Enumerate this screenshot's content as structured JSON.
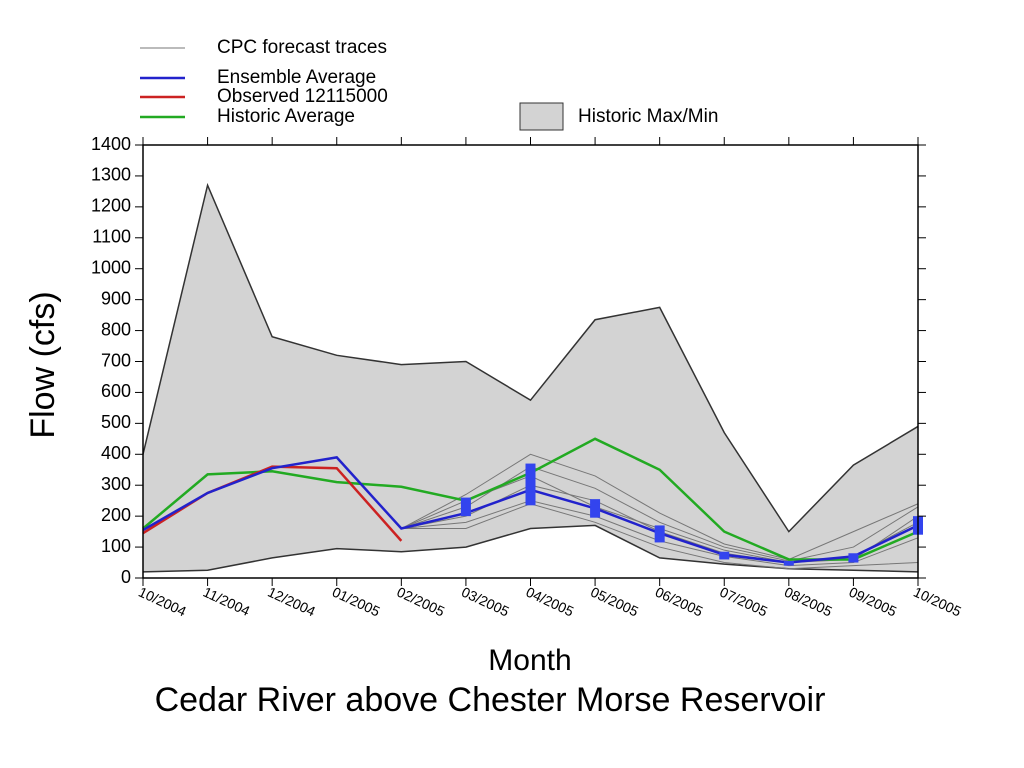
{
  "chart_data": {
    "type": "line",
    "caption": "Cedar River above Chester Morse Reservoir",
    "x_label": "Month",
    "y_label": "Flow (cfs)",
    "categories": [
      "10/2004",
      "11/2004",
      "12/2004",
      "01/2005",
      "02/2005",
      "03/2005",
      "04/2005",
      "05/2005",
      "06/2005",
      "07/2005",
      "08/2005",
      "09/2005",
      "10/2005"
    ],
    "ylim": [
      0,
      1400
    ],
    "yticks": [
      0,
      100,
      200,
      300,
      400,
      500,
      600,
      700,
      800,
      900,
      1000,
      1100,
      1200,
      1300,
      1400
    ],
    "series": [
      {
        "name": "CPC forecast traces",
        "color": "#777777",
        "traces": [
          [
            null,
            null,
            null,
            null,
            160,
            270,
            400,
            330,
            210,
            110,
            60,
            150,
            240
          ],
          [
            null,
            null,
            null,
            null,
            160,
            230,
            360,
            290,
            180,
            100,
            55,
            100,
            230
          ],
          [
            null,
            null,
            null,
            null,
            160,
            200,
            300,
            250,
            150,
            80,
            50,
            70,
            180
          ],
          [
            null,
            null,
            null,
            null,
            160,
            180,
            250,
            200,
            120,
            70,
            40,
            50,
            130
          ],
          [
            null,
            null,
            null,
            null,
            160,
            160,
            240,
            180,
            100,
            50,
            30,
            40,
            50
          ],
          [
            null,
            null,
            null,
            null,
            160,
            250,
            330,
            230,
            160,
            90,
            50,
            60,
            200
          ]
        ]
      },
      {
        "name": "Ensemble Average",
        "color": "#2222cc",
        "values": [
          155,
          275,
          355,
          390,
          160,
          210,
          285,
          225,
          145,
          75,
          50,
          70,
          170
        ]
      },
      {
        "name": "Observed 12115000",
        "color": "#cc2222",
        "values": [
          145,
          275,
          360,
          355,
          120,
          null,
          null,
          null,
          null,
          null,
          null,
          null,
          null
        ]
      },
      {
        "name": "Historic Average",
        "color": "#22aa22",
        "values": [
          160,
          335,
          345,
          310,
          295,
          250,
          340,
          450,
          350,
          150,
          60,
          60,
          150
        ]
      }
    ],
    "band": {
      "name": "Historic Max/Min",
      "color": "#d3d3d3",
      "max": [
        400,
        1270,
        780,
        720,
        690,
        700,
        575,
        835,
        875,
        470,
        150,
        365,
        490
      ],
      "min": [
        20,
        25,
        65,
        95,
        85,
        100,
        160,
        170,
        65,
        45,
        30,
        25,
        20
      ]
    },
    "ensemble_box": {
      "color": "#3344ee",
      "low": [
        null,
        null,
        null,
        null,
        null,
        200,
        235,
        195,
        115,
        60,
        40,
        50,
        140
      ],
      "high": [
        null,
        null,
        null,
        null,
        null,
        260,
        370,
        255,
        170,
        85,
        55,
        80,
        200
      ]
    }
  }
}
